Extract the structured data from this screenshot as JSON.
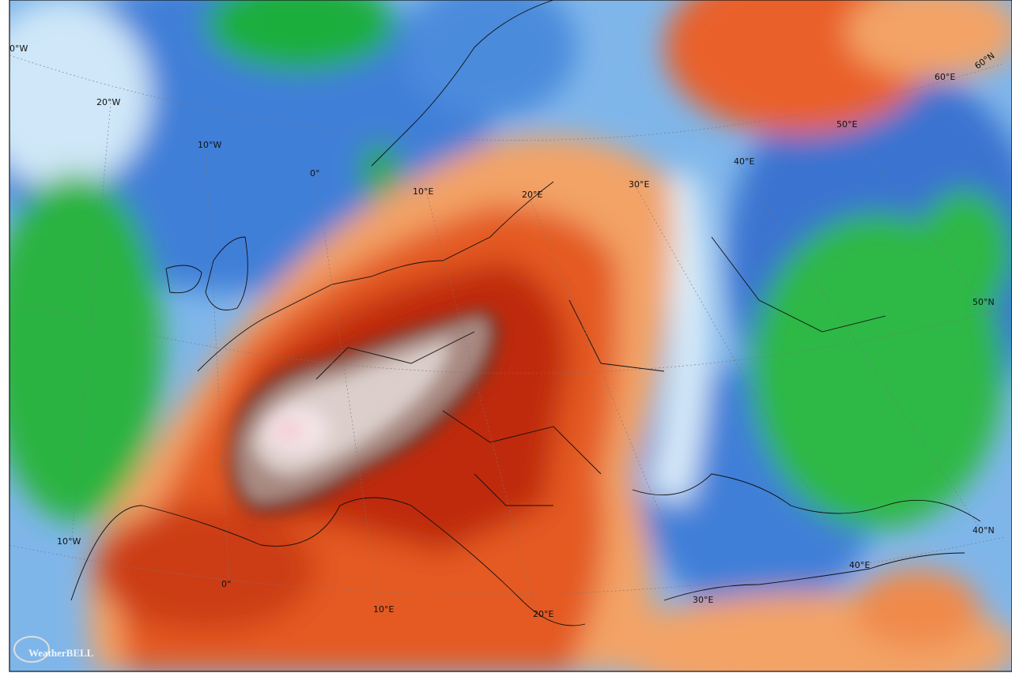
{
  "map": {
    "graticule_labels": [
      "0°W",
      "20°W",
      "10°W",
      "0°",
      "10°E",
      "20°E",
      "30°E",
      "40°E",
      "50°E",
      "60°E",
      "60°N",
      "50°N",
      "40°N",
      "10°W",
      "0°",
      "10°E",
      "20°E",
      "30°E",
      "40°E"
    ],
    "logo": "WeatherBELL"
  }
}
